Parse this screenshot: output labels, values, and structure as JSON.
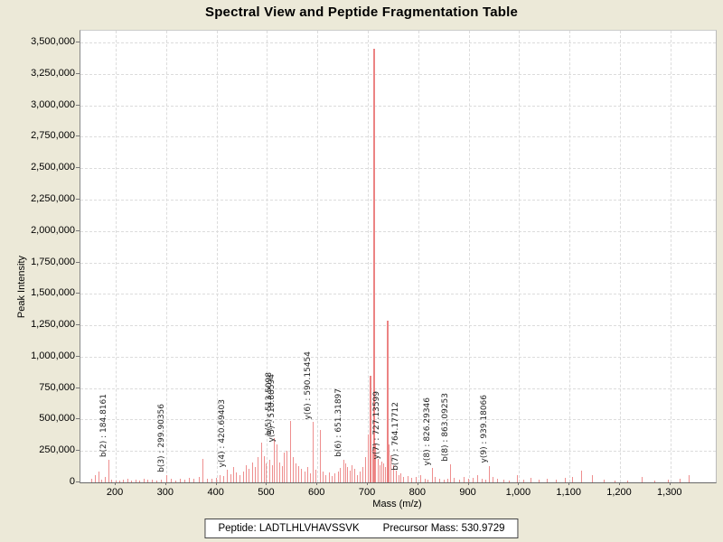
{
  "window": {
    "title": "Spectral View and Peptide Fragmentation Table"
  },
  "footer": {
    "peptide_label": "Peptide:",
    "peptide_value": "LADTLHLVHAVSSVK",
    "precursor_label": "Precursor Mass:",
    "precursor_value": "530.9729"
  },
  "chart_data": {
    "type": "bar",
    "subtype": "mass-spectrum",
    "title": "Spectral View and Peptide Fragmentation Table",
    "xlabel": "Mass (m/z)",
    "ylabel": "Peak Intensity",
    "xlim": [
      130,
      1390
    ],
    "ylim": [
      0,
      3500000
    ],
    "grid": true,
    "legend": "none",
    "colors": {
      "peak": "#ee8e8e",
      "peak_major": "#ec8383",
      "grid": "#dcdcdc",
      "axis": "#666666",
      "figure_background": "#ece9d8",
      "plot_background": "#ffffff",
      "annotation_text": "#222222"
    },
    "x_ticks": [
      {
        "value": 200,
        "label": "200"
      },
      {
        "value": 300,
        "label": "300"
      },
      {
        "value": 400,
        "label": "400"
      },
      {
        "value": 500,
        "label": "500"
      },
      {
        "value": 600,
        "label": "600"
      },
      {
        "value": 700,
        "label": "700"
      },
      {
        "value": 800,
        "label": "800"
      },
      {
        "value": 900,
        "label": "900"
      },
      {
        "value": 1000,
        "label": "1,000"
      },
      {
        "value": 1100,
        "label": "1,100"
      },
      {
        "value": 1200,
        "label": "1,200"
      },
      {
        "value": 1300,
        "label": "1,300"
      }
    ],
    "y_ticks": [
      {
        "value": 0,
        "label": "0"
      },
      {
        "value": 250000,
        "label": "250,000"
      },
      {
        "value": 500000,
        "label": "500,000"
      },
      {
        "value": 750000,
        "label": "750,000"
      },
      {
        "value": 1000000,
        "label": "1,000,000"
      },
      {
        "value": 1250000,
        "label": "1,250,000"
      },
      {
        "value": 1500000,
        "label": "1,500,000"
      },
      {
        "value": 1750000,
        "label": "1,750,000"
      },
      {
        "value": 2000000,
        "label": "2,000,000"
      },
      {
        "value": 2250000,
        "label": "2,250,000"
      },
      {
        "value": 2500000,
        "label": "2,500,000"
      },
      {
        "value": 2750000,
        "label": "2,750,000"
      },
      {
        "value": 3000000,
        "label": "3,000,000"
      },
      {
        "value": 3250000,
        "label": "3,250,000"
      },
      {
        "value": 3500000,
        "label": "3,500,000"
      }
    ],
    "annotations": [
      {
        "label": "b(2) : 184.8161",
        "ion": "b2",
        "mz": 184.8161,
        "intensity": 180000
      },
      {
        "label": "b(3) : 299.90356",
        "ion": "b3",
        "mz": 299.90356,
        "intensity": 60000
      },
      {
        "label": "y(4) : 420.69403",
        "ion": "y4",
        "mz": 420.69403,
        "intensity": 100000
      },
      {
        "label": "b(5) : 513.5098",
        "ion": "b5",
        "mz": 513.5098,
        "intensity": 350000
      },
      {
        "label": "y(5) : 518.88594",
        "ion": "y5",
        "mz": 518.88594,
        "intensity": 300000
      },
      {
        "label": "y(6) : 590.15454",
        "ion": "y6",
        "mz": 590.15454,
        "intensity": 480000
      },
      {
        "label": "b(6) : 651.31897",
        "ion": "b6",
        "mz": 651.31897,
        "intensity": 180000
      },
      {
        "label": "y(7) : 727.13599",
        "ion": "y7",
        "mz": 727.13599,
        "intensity": 165000
      },
      {
        "label": "b(7) : 764.17712",
        "ion": "b7",
        "mz": 764.17712,
        "intensity": 75000
      },
      {
        "label": "y(8) : 826.29346",
        "ion": "y8",
        "mz": 826.29346,
        "intensity": 115000
      },
      {
        "label": "b(8) : 863.09253",
        "ion": "b8",
        "mz": 863.09253,
        "intensity": 145000
      },
      {
        "label": "y(9) : 939.18066",
        "ion": "y9",
        "mz": 939.18066,
        "intensity": 130000
      }
    ],
    "peaks": [
      [
        152,
        30000
      ],
      [
        158,
        55000
      ],
      [
        165,
        85000
      ],
      [
        171,
        25000
      ],
      [
        178,
        40000
      ],
      [
        184.8161,
        180000
      ],
      [
        191,
        22000
      ],
      [
        199,
        15000
      ],
      [
        207,
        18000
      ],
      [
        215,
        22000
      ],
      [
        224,
        28000
      ],
      [
        231,
        16000
      ],
      [
        239,
        24000
      ],
      [
        247,
        18000
      ],
      [
        255,
        32000
      ],
      [
        263,
        20000
      ],
      [
        272,
        25000
      ],
      [
        281,
        16000
      ],
      [
        290,
        22000
      ],
      [
        299.90356,
        60000
      ],
      [
        309,
        26000
      ],
      [
        318,
        18000
      ],
      [
        327,
        32000
      ],
      [
        336,
        22000
      ],
      [
        345,
        38000
      ],
      [
        354,
        28000
      ],
      [
        364,
        45000
      ],
      [
        372,
        185000
      ],
      [
        380,
        32000
      ],
      [
        389,
        26000
      ],
      [
        398,
        38000
      ],
      [
        406,
        55000
      ],
      [
        413,
        48000
      ],
      [
        420.69403,
        100000
      ],
      [
        427,
        65000
      ],
      [
        433,
        120000
      ],
      [
        439,
        80000
      ],
      [
        445,
        60000
      ],
      [
        452,
        90000
      ],
      [
        458,
        140000
      ],
      [
        464,
        110000
      ],
      [
        470,
        160000
      ],
      [
        476,
        120000
      ],
      [
        482,
        200000
      ],
      [
        488,
        320000
      ],
      [
        493,
        210000
      ],
      [
        498,
        150000
      ],
      [
        504,
        180000
      ],
      [
        509,
        140000
      ],
      [
        513.5098,
        350000
      ],
      [
        518.88594,
        300000
      ],
      [
        524,
        160000
      ],
      [
        529,
        130000
      ],
      [
        534,
        240000
      ],
      [
        539,
        255000
      ],
      [
        545,
        490000
      ],
      [
        551,
        205000
      ],
      [
        556,
        150000
      ],
      [
        562,
        130000
      ],
      [
        568,
        105000
      ],
      [
        574,
        85000
      ],
      [
        580,
        120000
      ],
      [
        585,
        70000
      ],
      [
        590.15454,
        480000
      ],
      [
        596,
        100000
      ],
      [
        604,
        420000
      ],
      [
        610,
        85000
      ],
      [
        616,
        60000
      ],
      [
        622,
        80000
      ],
      [
        628,
        50000
      ],
      [
        634,
        70000
      ],
      [
        640,
        90000
      ],
      [
        645,
        115000
      ],
      [
        651.31897,
        180000
      ],
      [
        655,
        150000
      ],
      [
        659,
        120000
      ],
      [
        664,
        95000
      ],
      [
        668,
        140000
      ],
      [
        673,
        105000
      ],
      [
        678,
        60000
      ],
      [
        684,
        85000
      ],
      [
        690,
        125000
      ],
      [
        695,
        200000
      ],
      [
        700,
        380000
      ],
      [
        704,
        850000
      ],
      [
        708,
        260000
      ],
      [
        711,
        3450000
      ],
      [
        715,
        310000
      ],
      [
        719,
        185000
      ],
      [
        723,
        140000
      ],
      [
        727.13599,
        165000
      ],
      [
        731,
        150000
      ],
      [
        734,
        120000
      ],
      [
        737,
        1290000
      ],
      [
        741,
        300000
      ],
      [
        745,
        215000
      ],
      [
        750,
        135000
      ],
      [
        755,
        95000
      ],
      [
        760,
        60000
      ],
      [
        764.17712,
        75000
      ],
      [
        770,
        42000
      ],
      [
        778,
        52000
      ],
      [
        786,
        35000
      ],
      [
        795,
        45000
      ],
      [
        804,
        55000
      ],
      [
        812,
        30000
      ],
      [
        819,
        25000
      ],
      [
        826.29346,
        115000
      ],
      [
        833,
        40000
      ],
      [
        841,
        28000
      ],
      [
        850,
        24000
      ],
      [
        857,
        32000
      ],
      [
        863.09253,
        145000
      ],
      [
        871,
        35000
      ],
      [
        880,
        24000
      ],
      [
        889,
        40000
      ],
      [
        898,
        28000
      ],
      [
        907,
        35000
      ],
      [
        916,
        55000
      ],
      [
        925,
        30000
      ],
      [
        932,
        25000
      ],
      [
        939.18066,
        130000
      ],
      [
        948,
        45000
      ],
      [
        956,
        28000
      ],
      [
        968,
        22000
      ],
      [
        980,
        18000
      ],
      [
        995,
        60000
      ],
      [
        1008,
        24000
      ],
      [
        1022,
        35000
      ],
      [
        1038,
        20000
      ],
      [
        1055,
        28000
      ],
      [
        1072,
        22000
      ],
      [
        1090,
        35000
      ],
      [
        1105,
        42000
      ],
      [
        1122,
        95000
      ],
      [
        1145,
        60000
      ],
      [
        1168,
        20000
      ],
      [
        1190,
        18000
      ],
      [
        1215,
        15000
      ],
      [
        1243,
        45000
      ],
      [
        1268,
        18000
      ],
      [
        1295,
        22000
      ],
      [
        1318,
        30000
      ],
      [
        1336,
        55000
      ]
    ]
  }
}
